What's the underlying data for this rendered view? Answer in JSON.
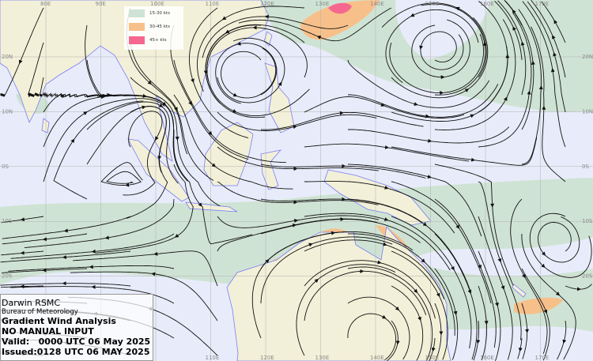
{
  "colors": {
    "ocean": "#e8ecfa",
    "land": "#f2f0d8",
    "coast": "#7a7cf5",
    "wind_15_30": "#cfe3d4",
    "wind_30_45": "#f7c08a",
    "wind_45_plus": "#f5678f",
    "streamline": "#111111"
  },
  "legend": {
    "items": [
      {
        "label": "15-30 kts",
        "color": "#cfe3d4"
      },
      {
        "label": "30-45 kts",
        "color": "#f7c08a"
      },
      {
        "label": "45+ kts",
        "color": "#f5678f"
      }
    ]
  },
  "grid": {
    "longitude_labels": [
      "80E",
      "90E",
      "100E",
      "110E",
      "120E",
      "130E",
      "140E",
      "150E",
      "160E",
      "170E"
    ],
    "latitude_labels": [
      "20N",
      "10N",
      "0S",
      "10S",
      "20S"
    ]
  },
  "info": {
    "office": "Darwin RSMC",
    "agency": "Bureau of Meteorology",
    "product": "Gradient Wind Analysis",
    "mode": "NO MANUAL INPUT",
    "valid": "Valid:   0000 UTC 06 May 2025",
    "issued": "Issued:0128 UTC 06 MAY 2025"
  }
}
